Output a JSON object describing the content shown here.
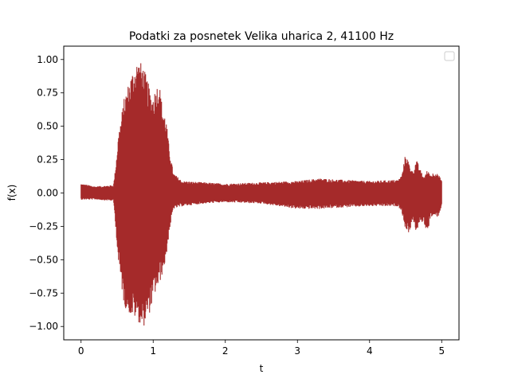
{
  "chart_data": {
    "type": "line",
    "title": "Podatki za posnetek Velika uharica 2, 41100 Hz",
    "xlabel": "t",
    "ylabel": "f(x)",
    "xlim": [
      -0.24,
      5.24
    ],
    "ylim": [
      -1.1,
      1.1
    ],
    "xticks": [
      0,
      1,
      2,
      3,
      4,
      5
    ],
    "yticks": [
      -1.0,
      -0.75,
      -0.5,
      -0.25,
      0.0,
      0.25,
      0.5,
      0.75,
      1.0
    ],
    "xtick_labels": [
      "0",
      "1",
      "2",
      "3",
      "4",
      "5"
    ],
    "ytick_labels": [
      "−1.00",
      "−0.75",
      "−0.50",
      "−0.25",
      "0.00",
      "0.25",
      "0.50",
      "0.75",
      "1.00"
    ],
    "grid": false,
    "legend": {
      "placement": "top-right",
      "entries": []
    },
    "series": [
      {
        "color": "#a52a2a",
        "envelope": {
          "t": [
            0.0,
            0.2,
            0.45,
            0.48,
            0.52,
            0.6,
            0.7,
            0.78,
            0.85,
            0.92,
            0.98,
            1.03,
            1.08,
            1.12,
            1.18,
            1.22,
            1.28,
            1.4,
            1.7,
            2.0,
            2.5,
            3.0,
            3.3,
            3.6,
            4.0,
            4.4,
            4.45,
            4.5,
            4.55,
            4.6,
            4.65,
            4.7,
            4.75,
            4.8,
            4.85,
            4.9,
            4.95,
            5.0
          ],
          "upper": [
            0.07,
            0.05,
            0.06,
            0.2,
            0.45,
            0.72,
            0.9,
            1.0,
            0.97,
            0.85,
            0.72,
            0.78,
            0.85,
            0.68,
            0.55,
            0.35,
            0.15,
            0.09,
            0.08,
            0.07,
            0.08,
            0.09,
            0.11,
            0.1,
            0.09,
            0.1,
            0.14,
            0.3,
            0.22,
            0.16,
            0.25,
            0.18,
            0.12,
            0.17,
            0.14,
            0.16,
            0.14,
            0.1
          ],
          "lower": [
            -0.05,
            -0.05,
            -0.06,
            -0.25,
            -0.55,
            -0.85,
            -0.93,
            -0.95,
            -1.02,
            -0.95,
            -0.85,
            -0.75,
            -0.7,
            -0.62,
            -0.5,
            -0.3,
            -0.12,
            -0.1,
            -0.08,
            -0.07,
            -0.08,
            -0.12,
            -0.12,
            -0.11,
            -0.1,
            -0.1,
            -0.15,
            -0.28,
            -0.3,
            -0.2,
            -0.3,
            -0.22,
            -0.22,
            -0.3,
            -0.18,
            -0.18,
            -0.18,
            -0.1
          ]
        }
      }
    ]
  }
}
